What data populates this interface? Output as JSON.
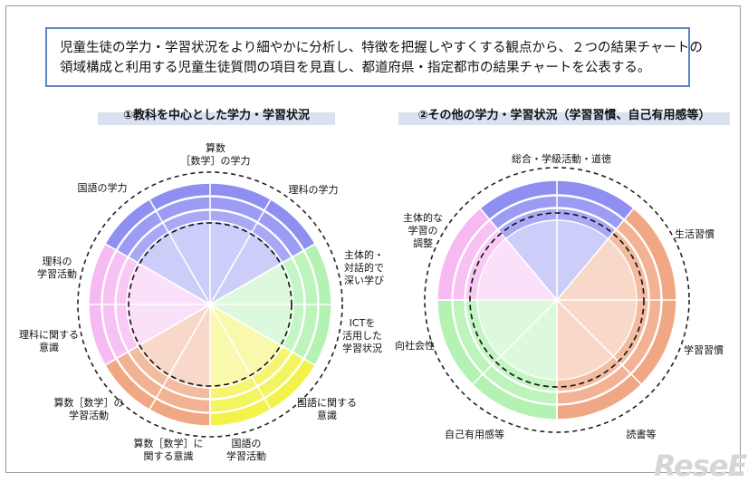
{
  "intro": {
    "line1": "児童生徒の学力・学習状況をより細やかに分析し、特徴を把握しやすくする観点から、２つの結果チャートの",
    "line2": "領域構成と利用する児童生徒質問の項目を見直し、都道府県・指定都市の結果チャートを公表する。"
  },
  "chart_left": {
    "title": "①教科を中心とした学力・学習状況",
    "labels": {
      "sansu1": "算数",
      "sansu2": "［数学］の学力",
      "rika_gakuryoku": "理科の学力",
      "kokugo_gakuryoku": "国語の学力",
      "shutai1": "主体的・",
      "shutai2": "対話的で",
      "shutai3": "深い学び",
      "ict1": "ICTを",
      "ict2": "活用した",
      "ict3": "学習状況",
      "rika_gakushu1": "理科の",
      "rika_gakushu2": "学習活動",
      "rika_ishiki1": "理科に関する",
      "rika_ishiki2": "意識",
      "kokugo_ishiki1": "国語に関する",
      "kokugo_ishiki2": "意識",
      "sansu_gakushu1": "算数［数学］の",
      "sansu_gakushu2": "学習活動",
      "sansu_ishiki1": "算数［数学］に",
      "sansu_ishiki2": "関する意識",
      "kokugo_gakushu1": "国語の",
      "kokugo_gakushu2": "学習活動"
    },
    "colors": {
      "blue": "#8f8ff2",
      "green": "#b3f2b3",
      "yellow": "#f2f24a",
      "orange": "#f0a884",
      "pink": "#f7b9f1"
    }
  },
  "chart_right": {
    "title": "②その他の学力・学習状況（学習習慣、自己有用感等）",
    "labels": {
      "sogo": "総合・学級活動・道徳",
      "seikatsu": "生活習慣",
      "shutai_chosei1": "主体的な",
      "shutai_chosei2": "学習の",
      "shutai_chosei3": "調整",
      "gakushu_shukan": "学習習慣",
      "shakaisei": "向社会性",
      "jiko": "自己有用感等",
      "dokusho": "読書等"
    },
    "colors": {
      "blue": "#8f8ff2",
      "green": "#b3f2b3",
      "orange": "#f0a884",
      "pink": "#f7b9f1"
    }
  },
  "logo": "ReseEd"
}
